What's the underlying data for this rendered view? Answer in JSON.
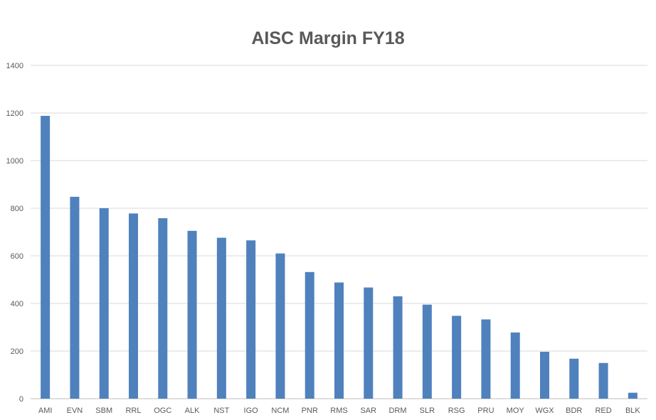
{
  "chart_data": {
    "type": "bar",
    "title": "AISC Margin FY18",
    "xlabel": "",
    "ylabel": "",
    "categories": [
      "AMI",
      "EVN",
      "SBM",
      "RRL",
      "OGC",
      "ALK",
      "NST",
      "IGO",
      "NCM",
      "PNR",
      "RMS",
      "SAR",
      "DRM",
      "SLR",
      "RSG",
      "PRU",
      "MOY",
      "WGX",
      "BDR",
      "RED",
      "BLK"
    ],
    "values": [
      1188,
      848,
      800,
      778,
      758,
      705,
      676,
      665,
      610,
      532,
      488,
      467,
      430,
      395,
      348,
      333,
      278,
      197,
      168,
      150,
      25
    ],
    "ylim": [
      0,
      1400
    ],
    "yticks": [
      "0",
      "200",
      "400",
      "600",
      "800",
      "1000",
      "1200",
      "1400"
    ],
    "grid": true,
    "legend": "none",
    "bar_color": "#4f81bd",
    "grid_color": "#d9d9d9",
    "text_color": "#595959"
  }
}
